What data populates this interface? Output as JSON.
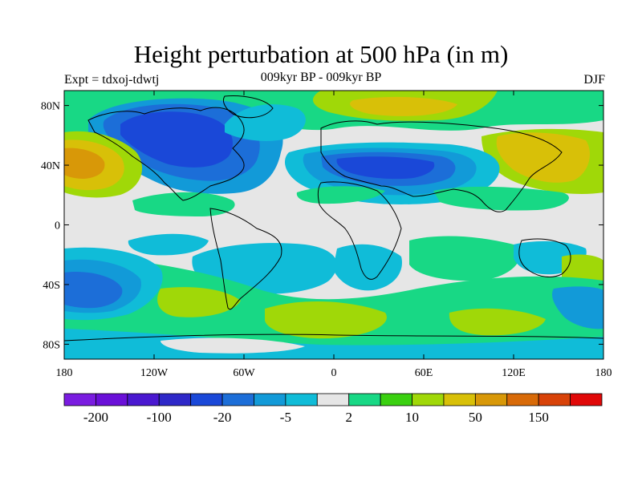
{
  "title": "Height perturbation at 500 hPa (in m)",
  "left_string": "Expt = tdxoj-tdwtj",
  "center_string": "009kyr BP - 009kyr BP",
  "right_string": "DJF",
  "lon_ticks": [
    "180",
    "120W",
    "60W",
    "0",
    "60E",
    "120E",
    "180"
  ],
  "lat_ticks": [
    "80N",
    "40N",
    "0",
    "40S",
    "80S"
  ],
  "colorbar": {
    "colors": [
      "#7a1ce0",
      "#6a10d8",
      "#4a18d0",
      "#2e28c8",
      "#1a48d8",
      "#1c6ed8",
      "#129ad8",
      "#10bcd8",
      "#e6e6e6",
      "#18d885",
      "#3ad010",
      "#a0d808",
      "#d8c008",
      "#d89808",
      "#d86a08",
      "#d84208",
      "#e00808"
    ],
    "labels": [
      "-200",
      "-100",
      "-20",
      "-5",
      "2",
      "10",
      "50",
      "150"
    ]
  },
  "palette": {
    "ocean_neutral": "#e6e6e6",
    "coastline": "#000000"
  }
}
